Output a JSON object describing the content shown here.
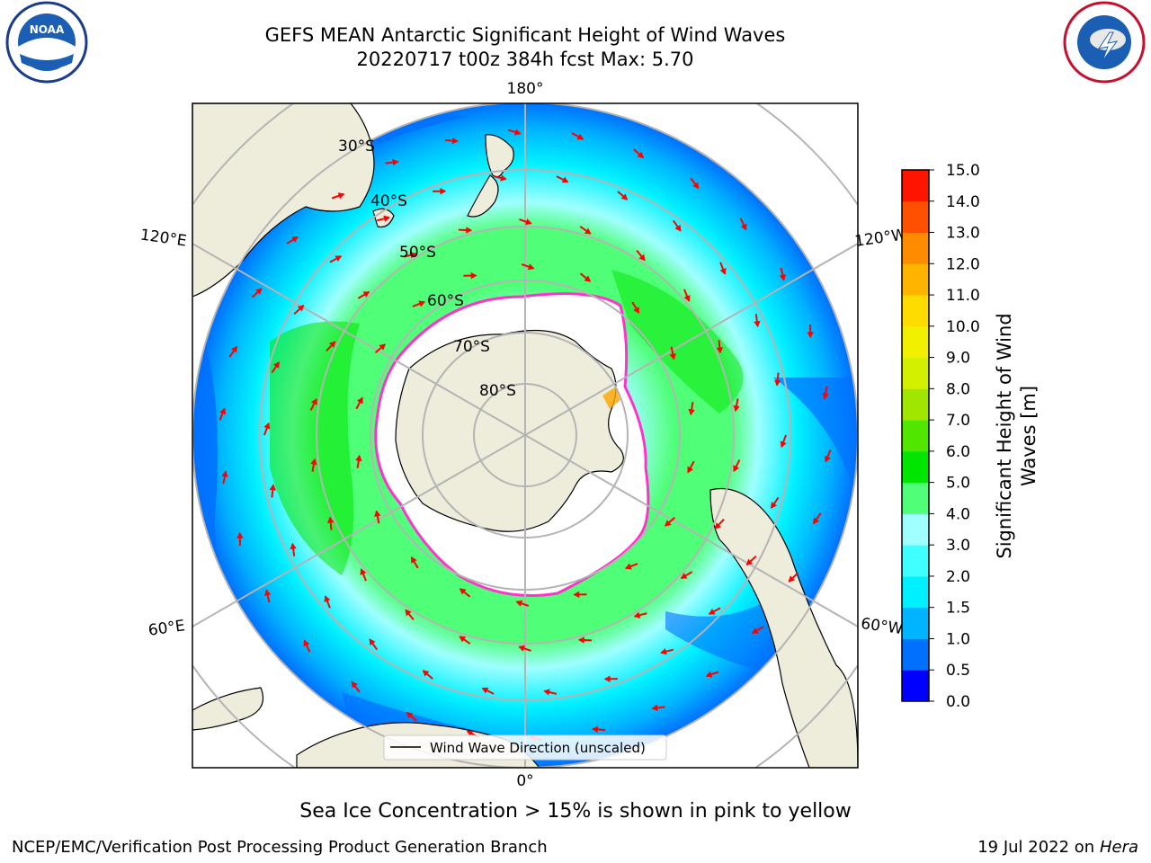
{
  "header": {
    "title_line1": "GEFS MEAN Antarctic Significant Height of Wind Waves",
    "title_line2": "20220717 t00z 384h fcst   Max: 5.70"
  },
  "logos": {
    "left": {
      "name": "NOAA",
      "ring_text": "NATIONAL OCEANIC AND ATMOSPHERIC ADMINISTRATION",
      "bottom_text": "U.S. DEPARTMENT OF COMMERCE"
    },
    "right": {
      "name": "NATIONAL WEATHER SERVICE"
    }
  },
  "map": {
    "projection": "south-polar-stereographic",
    "lon_labels": {
      "top": "180°",
      "bottom": "0°",
      "left_upper": "120°E",
      "left_lower": "60°E",
      "right_upper": "120°W",
      "right_lower": "60°W"
    },
    "lat_labels": [
      "30°S",
      "40°S",
      "50°S",
      "60°S",
      "70°S",
      "80°S"
    ],
    "legend_label": "Wind Wave Direction (unscaled)"
  },
  "colorbar": {
    "label_line1": "Significant Height of Wind",
    "label_line2": "Waves [m]",
    "ticks": [
      "0.0",
      "0.5",
      "1.0",
      "1.5",
      "2.0",
      "3.0",
      "4.0",
      "5.0",
      "6.0",
      "7.0",
      "8.0",
      "9.0",
      "10.0",
      "11.0",
      "12.0",
      "13.0",
      "14.0",
      "15.0"
    ],
    "colors": [
      "#0000ff",
      "#0070ff",
      "#00b4ff",
      "#00f0ff",
      "#40ffff",
      "#a0ffff",
      "#50ff78",
      "#00e600",
      "#50e600",
      "#a0e600",
      "#d2f000",
      "#f0f000",
      "#ffdc00",
      "#ffb400",
      "#ff8c00",
      "#ff5000",
      "#ff1400"
    ]
  },
  "footer": {
    "subtitle": "Sea Ice Concentration > 15% is shown in pink to yellow",
    "credit": "NCEP/EMC/Verification Post Processing Product Generation Branch",
    "date": "19 Jul 2022 on",
    "host": "Hera"
  }
}
